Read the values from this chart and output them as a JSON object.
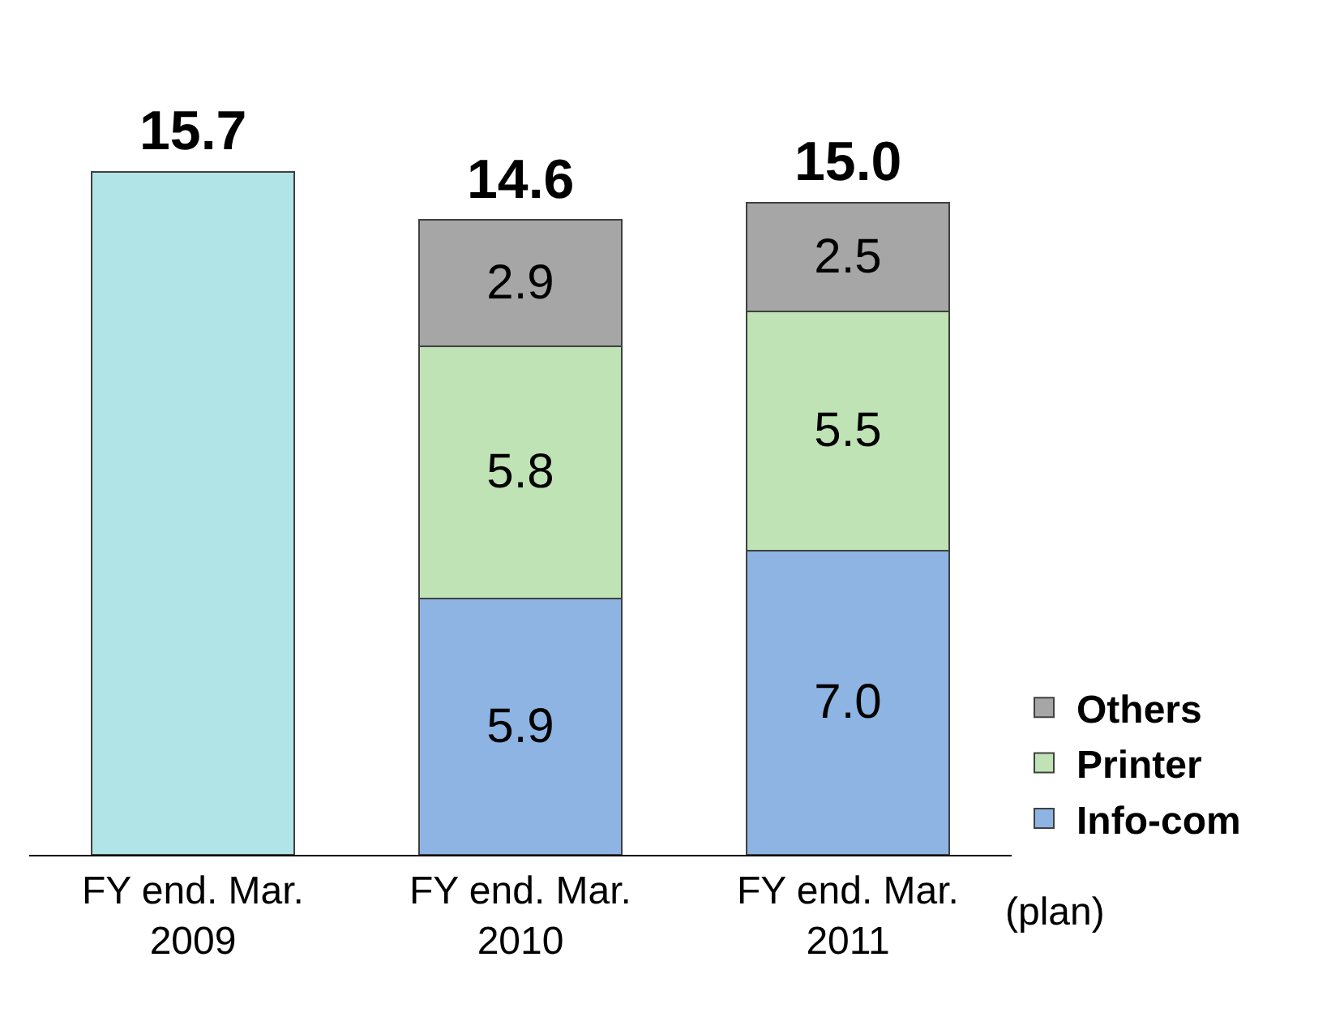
{
  "chart_data": {
    "type": "bar",
    "stacked": true,
    "categories": [
      "FY end. Mar.\n2009",
      "FY end. Mar.\n2010",
      "FY end. Mar.\n2011"
    ],
    "series": [
      {
        "color": "#b0e4e6",
        "values": [
          15.7,
          null,
          null
        ],
        "value_labels": [
          null,
          null,
          null
        ]
      },
      {
        "name": "Info-com",
        "color": "#8db4e2",
        "values": [
          null,
          5.9,
          7.0
        ],
        "value_labels": [
          null,
          "5.9",
          "7.0"
        ]
      },
      {
        "name": "Printer",
        "color": "#bfe3b4",
        "values": [
          null,
          5.8,
          5.5
        ],
        "value_labels": [
          null,
          "5.8",
          "5.5"
        ]
      },
      {
        "name": "Others",
        "color": "#a6a6a6",
        "values": [
          null,
          2.9,
          2.5
        ],
        "value_labels": [
          null,
          "2.9",
          "2.5"
        ]
      }
    ],
    "totals": [
      "15.7",
      "14.6",
      "15.0"
    ],
    "annotations": [
      "(plan)"
    ],
    "legend": "right"
  }
}
